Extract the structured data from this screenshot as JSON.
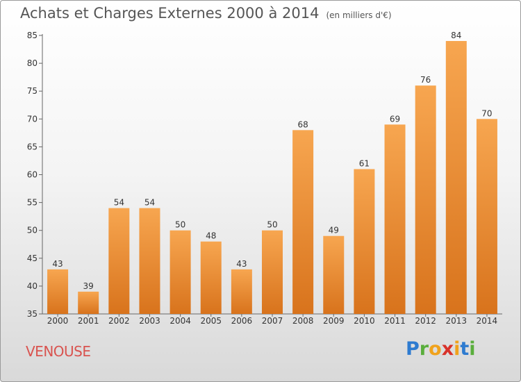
{
  "title": "Achats et Charges Externes 2000 à 2014",
  "unit": "(en milliers d'€)",
  "commune": "VENOUSE",
  "brand": {
    "p": "P",
    "r": "r",
    "o": "o",
    "x": "x",
    "i1": "i",
    "t": "t",
    "i2": "i"
  },
  "colors": {
    "bar_top": "#f7a650",
    "bar_bottom": "#d8731c",
    "title": "#555555",
    "commune": "#d9534f"
  },
  "chart_data": {
    "type": "bar",
    "title": "Achats et Charges Externes 2000 à 2014",
    "subtitle": "(en milliers d'€)",
    "categories": [
      "2000",
      "2001",
      "2002",
      "2003",
      "2004",
      "2005",
      "2006",
      "2007",
      "2008",
      "2009",
      "2010",
      "2011",
      "2012",
      "2013",
      "2014"
    ],
    "values": [
      43,
      39,
      54,
      54,
      50,
      48,
      43,
      50,
      68,
      49,
      61,
      69,
      76,
      84,
      70
    ],
    "ylim": [
      35,
      85
    ],
    "yticks": [
      35,
      40,
      45,
      50,
      55,
      60,
      65,
      70,
      75,
      80,
      85
    ],
    "grid": false,
    "xlabel": "",
    "ylabel": ""
  }
}
